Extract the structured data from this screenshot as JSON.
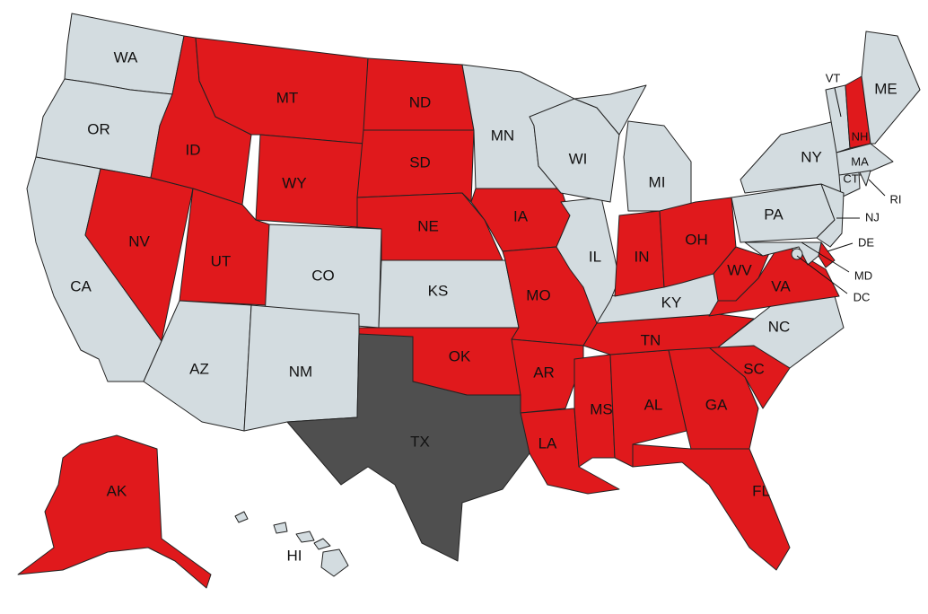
{
  "colors": {
    "red": "#e0191c",
    "gray": "#d3dce0",
    "dark": "#4f4f4f",
    "border": "#222222"
  },
  "states": [
    {
      "abbr": "WA",
      "status": "gray"
    },
    {
      "abbr": "OR",
      "status": "gray"
    },
    {
      "abbr": "CA",
      "status": "gray"
    },
    {
      "abbr": "NV",
      "status": "red"
    },
    {
      "abbr": "ID",
      "status": "red"
    },
    {
      "abbr": "MT",
      "status": "red"
    },
    {
      "abbr": "WY",
      "status": "red"
    },
    {
      "abbr": "UT",
      "status": "red"
    },
    {
      "abbr": "CO",
      "status": "gray"
    },
    {
      "abbr": "AZ",
      "status": "gray"
    },
    {
      "abbr": "NM",
      "status": "gray"
    },
    {
      "abbr": "ND",
      "status": "red"
    },
    {
      "abbr": "SD",
      "status": "red"
    },
    {
      "abbr": "NE",
      "status": "red"
    },
    {
      "abbr": "KS",
      "status": "gray"
    },
    {
      "abbr": "OK",
      "status": "red"
    },
    {
      "abbr": "TX",
      "status": "dark"
    },
    {
      "abbr": "MN",
      "status": "gray"
    },
    {
      "abbr": "IA",
      "status": "red"
    },
    {
      "abbr": "MO",
      "status": "red"
    },
    {
      "abbr": "AR",
      "status": "red"
    },
    {
      "abbr": "LA",
      "status": "red"
    },
    {
      "abbr": "MS",
      "status": "red"
    },
    {
      "abbr": "AL",
      "status": "red"
    },
    {
      "abbr": "GA",
      "status": "red"
    },
    {
      "abbr": "FL",
      "status": "red"
    },
    {
      "abbr": "SC",
      "status": "red"
    },
    {
      "abbr": "NC",
      "status": "gray"
    },
    {
      "abbr": "TN",
      "status": "red"
    },
    {
      "abbr": "KY",
      "status": "gray"
    },
    {
      "abbr": "IL",
      "status": "gray"
    },
    {
      "abbr": "WI",
      "status": "gray"
    },
    {
      "abbr": "MI",
      "status": "gray"
    },
    {
      "abbr": "IN",
      "status": "red"
    },
    {
      "abbr": "OH",
      "status": "red"
    },
    {
      "abbr": "WV",
      "status": "red"
    },
    {
      "abbr": "VA",
      "status": "red"
    },
    {
      "abbr": "PA",
      "status": "gray"
    },
    {
      "abbr": "NY",
      "status": "gray"
    },
    {
      "abbr": "VT",
      "status": "gray"
    },
    {
      "abbr": "NH",
      "status": "red"
    },
    {
      "abbr": "ME",
      "status": "gray"
    },
    {
      "abbr": "MA",
      "status": "gray"
    },
    {
      "abbr": "CT",
      "status": "gray"
    },
    {
      "abbr": "RI",
      "status": "gray"
    },
    {
      "abbr": "NJ",
      "status": "gray"
    },
    {
      "abbr": "DE",
      "status": "red"
    },
    {
      "abbr": "MD",
      "status": "gray"
    },
    {
      "abbr": "DC",
      "status": "gray"
    },
    {
      "abbr": "AK",
      "status": "red"
    },
    {
      "abbr": "HI",
      "status": "gray"
    }
  ]
}
